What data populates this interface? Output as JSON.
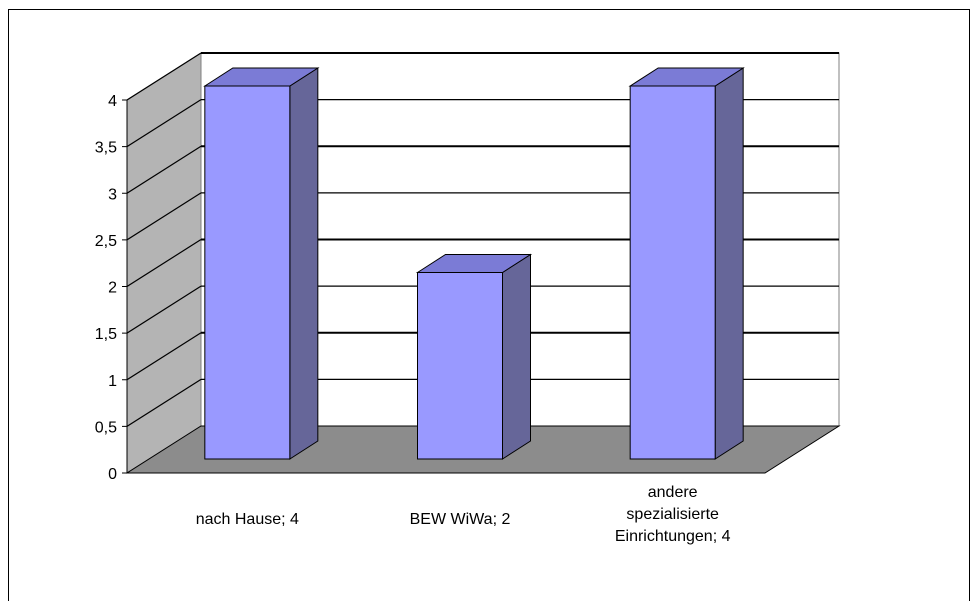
{
  "chart_data": {
    "type": "bar",
    "categories": [
      [
        "nach Hause;  4"
      ],
      [
        "BEW WiWa; 2"
      ],
      [
        "andere",
        "spezialisierte",
        "Einrichtungen;  4"
      ]
    ],
    "values": [
      4,
      2,
      4
    ],
    "ylim": [
      0,
      4
    ],
    "yticks": [
      "0",
      "0,5",
      "1",
      "1,5",
      "2",
      "2,5",
      "3",
      "3,5",
      "4"
    ],
    "grid": true,
    "legend": "none",
    "colors": {
      "bar_front": "#9999ff",
      "bar_side": "#666699",
      "bar_top": "#7b7bd6",
      "back_wall": "#ffffff",
      "side_wall": "#b4b4b4",
      "floor": "#8c8c8c",
      "grid": "#000000"
    }
  }
}
